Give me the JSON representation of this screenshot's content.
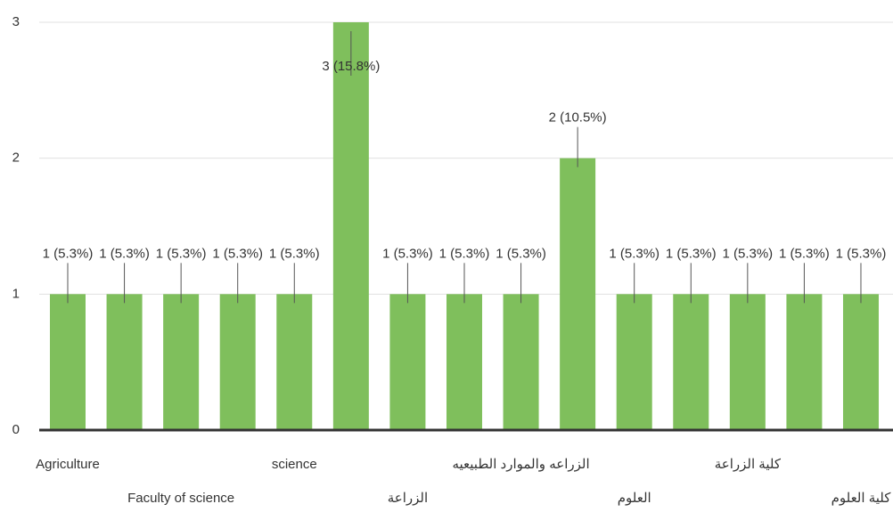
{
  "chart_data": {
    "type": "bar",
    "categories": [
      "Agriculture",
      null,
      "Faculty of science",
      null,
      "science",
      null,
      "الزراعة",
      null,
      "الزراعه والموارد الطبيعيه",
      null,
      "العلوم",
      null,
      "كلية الزراعة",
      null,
      "كلية العلوم"
    ],
    "values": [
      1,
      1,
      1,
      1,
      1,
      3,
      1,
      1,
      1,
      2,
      1,
      1,
      1,
      1,
      1
    ],
    "value_labels": [
      "1 (5.3%)",
      "1 (5.3%)",
      "1 (5.3%)",
      "1 (5.3%)",
      "1 (5.3%)",
      "3 (15.8%)",
      "1 (5.3%)",
      "1 (5.3%)",
      "1 (5.3%)",
      "2 (10.5%)",
      "1 (5.3%)",
      "1 (5.3%)",
      "1 (5.3%)",
      "1 (5.3%)",
      "1 (5.3%)"
    ],
    "color": "#7fbf5c",
    "ylim": [
      0,
      3
    ],
    "yticks": [
      0,
      1,
      2,
      3
    ],
    "grid": true
  }
}
